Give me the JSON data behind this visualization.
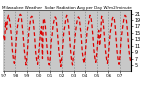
{
  "title": "Milwaukee Weather  Solar Radiation Avg per Day W/m2/minute",
  "line_color": "#dd0000",
  "bg_color": "#c8c8c8",
  "plot_bg": "#c8c8c8",
  "grid_color": "#aaaaaa",
  "ylim": [
    3,
    22
  ],
  "yticks": [
    5,
    7,
    9,
    11,
    13,
    15,
    17,
    19,
    21
  ],
  "values": [
    14.2,
    12.5,
    18.5,
    16.0,
    19.5,
    20.5,
    19.0,
    17.0,
    14.0,
    9.5,
    7.0,
    5.5,
    8.0,
    13.0,
    16.5,
    18.5,
    20.0,
    20.8,
    20.5,
    17.5,
    14.5,
    10.5,
    7.5,
    5.0,
    7.5,
    11.5,
    15.5,
    17.5,
    19.8,
    20.2,
    19.8,
    17.2,
    13.5,
    9.0,
    6.5,
    5.2,
    8.5,
    12.0,
    15.0,
    17.0,
    7.0,
    19.5,
    19.2,
    17.0,
    13.0,
    9.5,
    6.0,
    5.0,
    7.0,
    12.5,
    14.5,
    17.5,
    19.0,
    20.0,
    19.5,
    16.5,
    13.0,
    9.0,
    7.0,
    4.5,
    7.5,
    11.0,
    15.5,
    17.0,
    19.5,
    20.5,
    19.0,
    17.0,
    13.5,
    9.5,
    6.5,
    5.0,
    8.0,
    11.5,
    15.0,
    17.5,
    19.2,
    20.0,
    19.5,
    16.8,
    13.8,
    9.2,
    6.8,
    5.5,
    8.2,
    12.0,
    15.5,
    17.2,
    19.0,
    20.5,
    20.0,
    17.5,
    14.0,
    9.8,
    7.2,
    5.8,
    8.5,
    12.5,
    15.8,
    11.0,
    14.5,
    20.2,
    19.8,
    17.2,
    13.5,
    9.5,
    7.0,
    5.5,
    8.0,
    12.0,
    15.5,
    17.0,
    19.5,
    20.0,
    19.5,
    17.0,
    13.2,
    9.0,
    6.8,
    5.2,
    7.8,
    12.8,
    15.2,
    17.5,
    19.5,
    20.5,
    20.2,
    17.8,
    14.2,
    10.0,
    7.5,
    6.0
  ],
  "xlabel_interval": 12,
  "x_labels": [
    "'97",
    "'98",
    "'99",
    "'00",
    "'01",
    "'02",
    "'03",
    "'04",
    "'05",
    "'06",
    "'07"
  ]
}
